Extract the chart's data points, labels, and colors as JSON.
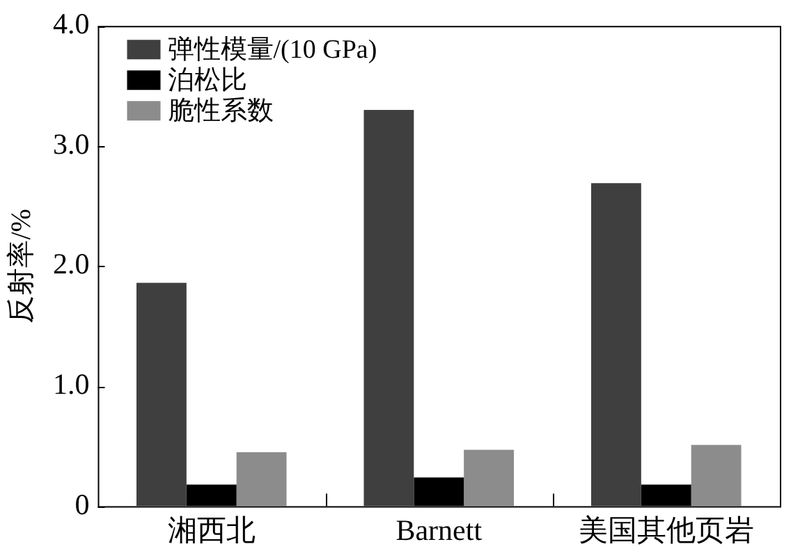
{
  "chart_data": {
    "type": "bar",
    "ylabel": "反射率/%",
    "categories": [
      "湘西北",
      "Barnett",
      "美国其他页岩"
    ],
    "series": [
      {
        "name": "弹性模量/(10 GPa)",
        "color": "#3f3f3f",
        "values": [
          1.86,
          3.3,
          2.69
        ]
      },
      {
        "name": "泊松比",
        "color": "#000000",
        "values": [
          0.18,
          0.24,
          0.18
        ]
      },
      {
        "name": "脆性系数",
        "color": "#8c8c8c",
        "values": [
          0.45,
          0.47,
          0.51
        ]
      }
    ],
    "ylim": [
      0,
      4
    ],
    "yticks": [
      {
        "value": 0,
        "label": "0"
      },
      {
        "value": 1,
        "label": "1.0"
      },
      {
        "value": 2,
        "label": "2.0"
      },
      {
        "value": 3,
        "label": "3.0"
      },
      {
        "value": 4,
        "label": "4.0"
      }
    ],
    "grid": false,
    "legend": "top left"
  }
}
